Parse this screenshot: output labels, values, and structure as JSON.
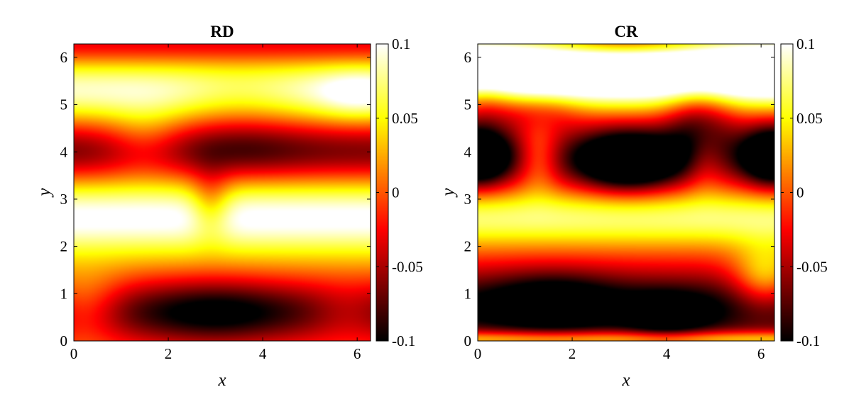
{
  "chart_data": [
    {
      "type": "heatmap",
      "title": "RD",
      "xlabel": "x",
      "ylabel": "y",
      "xlim": [
        0,
        6.2832
      ],
      "ylim": [
        0,
        6.2832
      ],
      "xticks": [
        "0",
        "2",
        "4",
        "6"
      ],
      "yticks": [
        "0",
        "1",
        "2",
        "3",
        "4",
        "5",
        "6"
      ],
      "colorbar": {
        "ticks": [
          "-0.1",
          "-0.05",
          "0",
          "0.05",
          "0.1"
        ],
        "range": [
          -0.1,
          0.1
        ],
        "colormap": "hot"
      },
      "field": {
        "base": 0.015,
        "bands": [
          {
            "y": 0.6,
            "sy": 0.5,
            "amp": -0.09
          },
          {
            "y": 2.6,
            "sy": 0.55,
            "amp": 0.09
          },
          {
            "y": 4.0,
            "sy": 0.45,
            "amp": -0.08
          },
          {
            "y": 5.3,
            "sy": 0.45,
            "amp": 0.075
          },
          {
            "y": 6.28,
            "sy": 0.3,
            "amp": -0.05
          }
        ],
        "blobs": [
          {
            "x": 3.0,
            "y": 0.6,
            "sx": 1.0,
            "sy": 0.5,
            "amp": -0.04
          },
          {
            "x": 0.2,
            "y": 0.7,
            "sx": 0.6,
            "sy": 0.5,
            "amp": 0.06
          },
          {
            "x": 5.8,
            "y": 0.6,
            "sx": 0.6,
            "sy": 0.4,
            "amp": 0.03
          },
          {
            "x": 2.9,
            "y": 2.9,
            "sx": 0.3,
            "sy": 0.5,
            "amp": -0.05
          },
          {
            "x": 3.6,
            "y": 4.2,
            "sx": 0.9,
            "sy": 0.5,
            "amp": -0.02
          },
          {
            "x": 1.5,
            "y": 4.2,
            "sx": 0.6,
            "sy": 0.5,
            "amp": 0.04
          },
          {
            "x": 6.0,
            "y": 5.2,
            "sx": 0.6,
            "sy": 0.4,
            "amp": 0.03
          },
          {
            "x": 3.5,
            "y": 5.2,
            "sx": 0.9,
            "sy": 0.4,
            "amp": -0.02
          }
        ]
      }
    },
    {
      "type": "heatmap",
      "title": "CR",
      "xlabel": "x",
      "ylabel": "y",
      "xlim": [
        0,
        6.2832
      ],
      "ylim": [
        0,
        6.2832
      ],
      "xticks": [
        "0",
        "2",
        "4",
        "6"
      ],
      "yticks": [
        "0",
        "1",
        "2",
        "3",
        "4",
        "5",
        "6"
      ],
      "colorbar": {
        "ticks": [
          "-0.1",
          "-0.05",
          "0",
          "0.05",
          "0.1"
        ],
        "range": [
          -0.1,
          0.1
        ],
        "colormap": "hot"
      },
      "field": {
        "base": -0.01,
        "bands": [
          {
            "y": 0.7,
            "sy": 0.55,
            "amp": -0.09
          },
          {
            "y": 2.6,
            "sy": 0.45,
            "amp": 0.085
          },
          {
            "y": 3.9,
            "sy": 0.5,
            "amp": -0.04
          },
          {
            "y": 5.7,
            "sy": 0.5,
            "amp": 0.2
          },
          {
            "y": 0.05,
            "sy": 0.12,
            "amp": 0.08
          }
        ],
        "blobs": [
          {
            "x": 3.2,
            "y": 3.8,
            "sx": 0.8,
            "sy": 0.45,
            "amp": -0.15
          },
          {
            "x": 0.0,
            "y": 3.9,
            "sx": 0.5,
            "sy": 0.45,
            "amp": -0.14
          },
          {
            "x": 6.28,
            "y": 3.9,
            "sx": 0.5,
            "sy": 0.45,
            "amp": -0.14
          },
          {
            "x": 1.6,
            "y": 0.8,
            "sx": 0.9,
            "sy": 0.45,
            "amp": -0.06
          },
          {
            "x": 4.0,
            "y": 0.5,
            "sx": 0.6,
            "sy": 0.35,
            "amp": -0.06
          },
          {
            "x": 6.1,
            "y": 1.3,
            "sx": 0.5,
            "sy": 0.5,
            "amp": 0.08
          },
          {
            "x": 4.7,
            "y": 4.6,
            "sx": 0.5,
            "sy": 0.6,
            "amp": -0.07
          },
          {
            "x": 0.1,
            "y": 5.1,
            "sx": 0.5,
            "sy": 0.4,
            "amp": -0.05
          },
          {
            "x": 1.3,
            "y": 4.9,
            "sx": 0.6,
            "sy": 0.3,
            "amp": -0.04
          },
          {
            "x": 1.3,
            "y": 3.9,
            "sx": 0.3,
            "sy": 0.5,
            "amp": 0.05
          },
          {
            "x": 4.8,
            "y": 3.9,
            "sx": 0.3,
            "sy": 0.5,
            "amp": 0.04
          },
          {
            "x": 3.1,
            "y": 6.28,
            "sx": 1.2,
            "sy": 0.2,
            "amp": -0.07
          }
        ]
      }
    }
  ]
}
